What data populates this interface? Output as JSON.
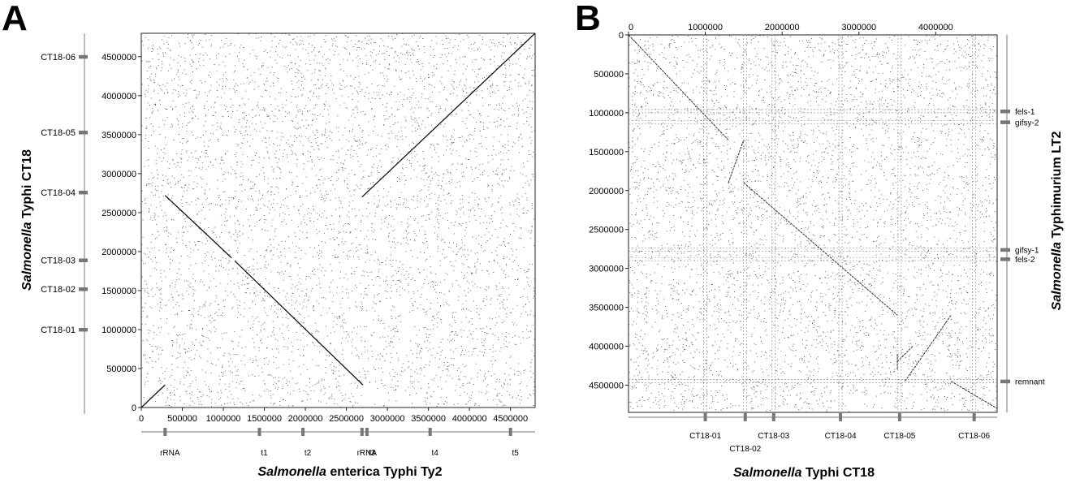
{
  "figure": {
    "panel_a_letter": "A",
    "panel_b_letter": "B"
  },
  "chart_data": [
    {
      "type": "scatter",
      "panel": "A",
      "xlabel_italic": "Salmonella",
      "xlabel_rest": " enterica Typhi Ty2",
      "ylabel_italic": "Salmonella",
      "ylabel_rest": " Typhi CT18",
      "xlim": [
        0,
        4800000
      ],
      "ylim": [
        0,
        4800000
      ],
      "xticks": [
        0,
        500000,
        1000000,
        1500000,
        2000000,
        2500000,
        3000000,
        3500000,
        4000000,
        4500000
      ],
      "yticks": [
        0,
        500000,
        1000000,
        1500000,
        2000000,
        2500000,
        3000000,
        3500000,
        4000000,
        4500000
      ],
      "x_features": [
        {
          "label": "rRNA",
          "pos": 290000
        },
        {
          "label": "t1",
          "pos": 1440000
        },
        {
          "label": "t2",
          "pos": 1970000
        },
        {
          "label": "rRNA",
          "pos": 2690000
        },
        {
          "label": "t3",
          "pos": 2750000
        },
        {
          "label": "t4",
          "pos": 3520000
        },
        {
          "label": "t5",
          "pos": 4500000
        }
      ],
      "y_features": [
        {
          "label": "CT18-01",
          "pos": 1000000
        },
        {
          "label": "CT18-02",
          "pos": 1520000
        },
        {
          "label": "CT18-03",
          "pos": 1890000
        },
        {
          "label": "CT18-04",
          "pos": 2760000
        },
        {
          "label": "CT18-05",
          "pos": 3530000
        },
        {
          "label": "CT18-06",
          "pos": 4500000
        }
      ],
      "alignments": [
        {
          "x": [
            0,
            290000
          ],
          "y": [
            0,
            290000
          ]
        },
        {
          "x": [
            290000,
            1100000
          ],
          "y": [
            2720000,
            1920000
          ]
        },
        {
          "x": [
            1140000,
            2700000
          ],
          "y": [
            1880000,
            290000
          ]
        },
        {
          "x": [
            2690000,
            4800000
          ],
          "y": [
            2700000,
            4800000
          ]
        }
      ],
      "grid": false
    },
    {
      "type": "scatter",
      "panel": "B",
      "xlabel_italic": "Salmonella",
      "xlabel_rest": " Typhi CT18",
      "ylabel_italic": "Salmonella",
      "ylabel_rest": " Typhimurium LT2",
      "xlim": [
        0,
        4800000
      ],
      "ylim": [
        0,
        4850000
      ],
      "y_inverted": true,
      "xticks": [
        0,
        1000000,
        2000000,
        3000000,
        4000000
      ],
      "yticks": [
        0,
        500000,
        1000000,
        1500000,
        2000000,
        2500000,
        3000000,
        3500000,
        4000000,
        4500000
      ],
      "x_features": [
        {
          "label": "CT18-01",
          "pos": 1000000,
          "row": 0
        },
        {
          "label": "CT18-02",
          "pos": 1520000,
          "row": 1
        },
        {
          "label": "CT18-03",
          "pos": 1890000,
          "row": 0
        },
        {
          "label": "CT18-04",
          "pos": 2760000,
          "row": 0
        },
        {
          "label": "CT18-05",
          "pos": 3530000,
          "row": 0
        },
        {
          "label": "CT18-06",
          "pos": 4500000,
          "row": 0
        }
      ],
      "y_features": [
        {
          "label": "fels-1",
          "pos": 980000
        },
        {
          "label": "gifsy-2",
          "pos": 1120000
        },
        {
          "label": "gifsy-1",
          "pos": 2760000
        },
        {
          "label": "fels-2",
          "pos": 2880000
        },
        {
          "label": "remnant",
          "pos": 4450000
        }
      ],
      "alignments": [
        {
          "x": [
            0,
            1300000
          ],
          "y": [
            0,
            1350000
          ]
        },
        {
          "x": [
            1300000,
            1500000
          ],
          "y": [
            1900000,
            1350000
          ]
        },
        {
          "x": [
            1500000,
            3500000
          ],
          "y": [
            1900000,
            3600000
          ]
        },
        {
          "x": [
            3500000,
            3500000
          ],
          "y": [
            4300000,
            4100000
          ]
        },
        {
          "x": [
            3500000,
            3700000
          ],
          "y": [
            4200000,
            4000000
          ]
        },
        {
          "x": [
            3600000,
            4200000
          ],
          "y": [
            4450000,
            3600000
          ]
        },
        {
          "x": [
            4200000,
            4800000
          ],
          "y": [
            4450000,
            4800000
          ]
        }
      ],
      "grid": false
    }
  ]
}
